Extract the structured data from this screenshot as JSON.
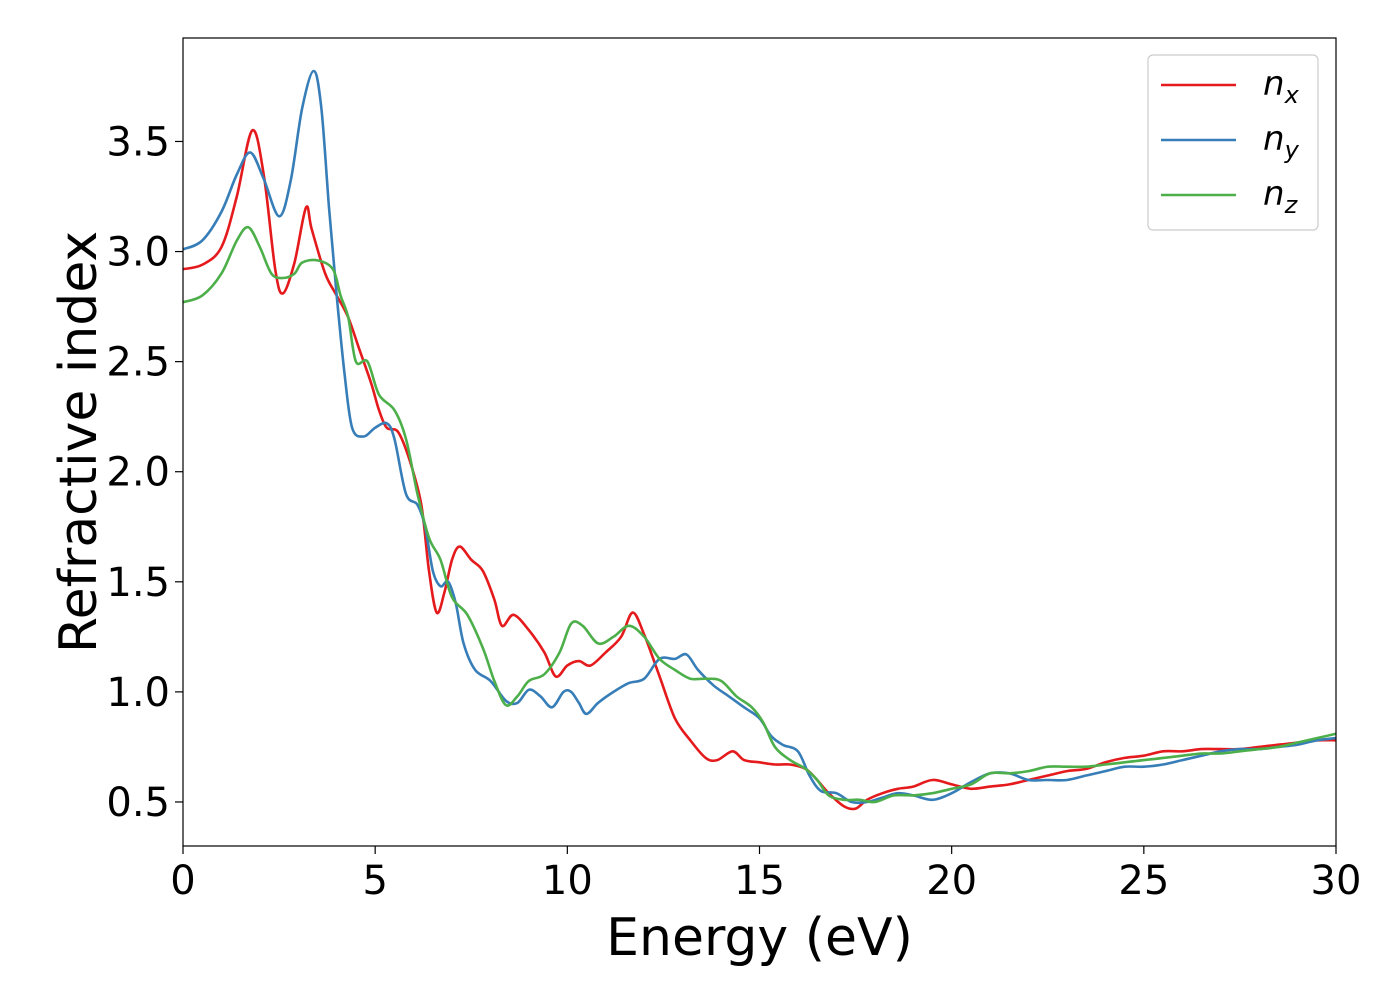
{
  "chart_data": {
    "type": "line",
    "title": "",
    "xlabel": "Energy (eV)",
    "ylabel": "Refractive index",
    "xlim": [
      0,
      30
    ],
    "ylim": [
      0.3,
      3.97
    ],
    "xticks": [
      0,
      5,
      10,
      15,
      20,
      25,
      30
    ],
    "xtick_labels": [
      "0",
      "5",
      "10",
      "15",
      "20",
      "25",
      "30"
    ],
    "yticks": [
      0.5,
      1.0,
      1.5,
      2.0,
      2.5,
      3.0,
      3.5
    ],
    "ytick_labels": [
      "0.5",
      "1.0",
      "1.5",
      "2.0",
      "2.5",
      "3.0",
      "3.5"
    ],
    "grid": false,
    "legend_position": "top-right",
    "series": [
      {
        "name": "n",
        "subscript": "x",
        "color": "#e41a1c",
        "points": [
          [
            0,
            2.92
          ],
          [
            0.5,
            2.94
          ],
          [
            1.0,
            3.02
          ],
          [
            1.4,
            3.25
          ],
          [
            1.8,
            3.55
          ],
          [
            2.1,
            3.35
          ],
          [
            2.4,
            2.92
          ],
          [
            2.6,
            2.81
          ],
          [
            2.9,
            2.95
          ],
          [
            3.2,
            3.2
          ],
          [
            3.35,
            3.1
          ],
          [
            3.7,
            2.9
          ],
          [
            4.0,
            2.8
          ],
          [
            4.3,
            2.7
          ],
          [
            4.6,
            2.55
          ],
          [
            4.9,
            2.4
          ],
          [
            5.1,
            2.28
          ],
          [
            5.3,
            2.2
          ],
          [
            5.6,
            2.18
          ],
          [
            5.9,
            2.05
          ],
          [
            6.2,
            1.85
          ],
          [
            6.4,
            1.55
          ],
          [
            6.6,
            1.36
          ],
          [
            6.8,
            1.45
          ],
          [
            7.0,
            1.6
          ],
          [
            7.2,
            1.66
          ],
          [
            7.5,
            1.6
          ],
          [
            7.8,
            1.55
          ],
          [
            8.1,
            1.42
          ],
          [
            8.3,
            1.3
          ],
          [
            8.6,
            1.35
          ],
          [
            9.0,
            1.28
          ],
          [
            9.4,
            1.18
          ],
          [
            9.7,
            1.07
          ],
          [
            10.0,
            1.12
          ],
          [
            10.3,
            1.14
          ],
          [
            10.6,
            1.12
          ],
          [
            11.0,
            1.18
          ],
          [
            11.4,
            1.25
          ],
          [
            11.7,
            1.36
          ],
          [
            12.0,
            1.26
          ],
          [
            12.4,
            1.07
          ],
          [
            12.8,
            0.88
          ],
          [
            13.2,
            0.78
          ],
          [
            13.6,
            0.7
          ],
          [
            13.9,
            0.69
          ],
          [
            14.3,
            0.73
          ],
          [
            14.6,
            0.69
          ],
          [
            15.0,
            0.68
          ],
          [
            15.4,
            0.67
          ],
          [
            15.8,
            0.67
          ],
          [
            16.2,
            0.65
          ],
          [
            16.5,
            0.6
          ],
          [
            16.8,
            0.54
          ],
          [
            17.2,
            0.48
          ],
          [
            17.5,
            0.47
          ],
          [
            17.8,
            0.51
          ],
          [
            18.2,
            0.54
          ],
          [
            18.6,
            0.56
          ],
          [
            19.0,
            0.57
          ],
          [
            19.5,
            0.6
          ],
          [
            20.0,
            0.58
          ],
          [
            20.5,
            0.56
          ],
          [
            21.0,
            0.57
          ],
          [
            21.5,
            0.58
          ],
          [
            22.0,
            0.6
          ],
          [
            22.5,
            0.62
          ],
          [
            23.0,
            0.64
          ],
          [
            23.5,
            0.65
          ],
          [
            24.0,
            0.68
          ],
          [
            24.5,
            0.7
          ],
          [
            25.0,
            0.71
          ],
          [
            25.5,
            0.73
          ],
          [
            26.0,
            0.73
          ],
          [
            26.5,
            0.74
          ],
          [
            27.0,
            0.74
          ],
          [
            27.5,
            0.74
          ],
          [
            28.0,
            0.75
          ],
          [
            28.5,
            0.76
          ],
          [
            29.0,
            0.77
          ],
          [
            29.5,
            0.78
          ],
          [
            30.0,
            0.78
          ]
        ]
      },
      {
        "name": "n",
        "subscript": "y",
        "color": "#377eb8",
        "points": [
          [
            0,
            3.01
          ],
          [
            0.5,
            3.05
          ],
          [
            1.0,
            3.18
          ],
          [
            1.4,
            3.35
          ],
          [
            1.75,
            3.45
          ],
          [
            2.1,
            3.33
          ],
          [
            2.5,
            3.16
          ],
          [
            2.8,
            3.32
          ],
          [
            3.1,
            3.65
          ],
          [
            3.4,
            3.82
          ],
          [
            3.6,
            3.65
          ],
          [
            3.8,
            3.2
          ],
          [
            4.0,
            2.8
          ],
          [
            4.2,
            2.45
          ],
          [
            4.4,
            2.2
          ],
          [
            4.7,
            2.16
          ],
          [
            5.0,
            2.2
          ],
          [
            5.3,
            2.22
          ],
          [
            5.5,
            2.15
          ],
          [
            5.8,
            1.9
          ],
          [
            6.1,
            1.85
          ],
          [
            6.3,
            1.75
          ],
          [
            6.5,
            1.55
          ],
          [
            6.7,
            1.48
          ],
          [
            6.9,
            1.5
          ],
          [
            7.1,
            1.4
          ],
          [
            7.3,
            1.22
          ],
          [
            7.6,
            1.1
          ],
          [
            8.0,
            1.05
          ],
          [
            8.4,
            0.96
          ],
          [
            8.7,
            0.95
          ],
          [
            9.0,
            1.01
          ],
          [
            9.3,
            0.98
          ],
          [
            9.6,
            0.93
          ],
          [
            9.9,
            1.0
          ],
          [
            10.1,
            1.0
          ],
          [
            10.3,
            0.95
          ],
          [
            10.5,
            0.9
          ],
          [
            10.8,
            0.95
          ],
          [
            11.2,
            1.0
          ],
          [
            11.6,
            1.04
          ],
          [
            12.0,
            1.06
          ],
          [
            12.4,
            1.15
          ],
          [
            12.8,
            1.15
          ],
          [
            13.1,
            1.17
          ],
          [
            13.4,
            1.1
          ],
          [
            13.8,
            1.03
          ],
          [
            14.2,
            0.98
          ],
          [
            14.6,
            0.93
          ],
          [
            15.0,
            0.88
          ],
          [
            15.3,
            0.8
          ],
          [
            15.6,
            0.76
          ],
          [
            16.0,
            0.73
          ],
          [
            16.3,
            0.62
          ],
          [
            16.6,
            0.55
          ],
          [
            17.0,
            0.54
          ],
          [
            17.4,
            0.5
          ],
          [
            17.8,
            0.5
          ],
          [
            18.2,
            0.52
          ],
          [
            18.6,
            0.54
          ],
          [
            19.0,
            0.53
          ],
          [
            19.5,
            0.51
          ],
          [
            20.0,
            0.54
          ],
          [
            20.5,
            0.59
          ],
          [
            21.0,
            0.63
          ],
          [
            21.5,
            0.63
          ],
          [
            22.0,
            0.6
          ],
          [
            22.5,
            0.6
          ],
          [
            23.0,
            0.6
          ],
          [
            23.5,
            0.62
          ],
          [
            24.0,
            0.64
          ],
          [
            24.5,
            0.66
          ],
          [
            25.0,
            0.66
          ],
          [
            25.5,
            0.67
          ],
          [
            26.0,
            0.69
          ],
          [
            26.5,
            0.71
          ],
          [
            27.0,
            0.73
          ],
          [
            27.5,
            0.74
          ],
          [
            28.0,
            0.74
          ],
          [
            28.5,
            0.75
          ],
          [
            29.0,
            0.76
          ],
          [
            29.5,
            0.78
          ],
          [
            30.0,
            0.79
          ]
        ]
      },
      {
        "name": "n",
        "subscript": "z",
        "color": "#4daf4a",
        "points": [
          [
            0,
            2.77
          ],
          [
            0.5,
            2.8
          ],
          [
            1.0,
            2.9
          ],
          [
            1.4,
            3.05
          ],
          [
            1.7,
            3.11
          ],
          [
            2.0,
            3.02
          ],
          [
            2.3,
            2.9
          ],
          [
            2.6,
            2.88
          ],
          [
            2.9,
            2.9
          ],
          [
            3.1,
            2.95
          ],
          [
            3.5,
            2.96
          ],
          [
            3.9,
            2.92
          ],
          [
            4.1,
            2.8
          ],
          [
            4.3,
            2.7
          ],
          [
            4.5,
            2.5
          ],
          [
            4.8,
            2.5
          ],
          [
            5.1,
            2.35
          ],
          [
            5.5,
            2.28
          ],
          [
            5.8,
            2.15
          ],
          [
            6.1,
            1.9
          ],
          [
            6.4,
            1.7
          ],
          [
            6.7,
            1.6
          ],
          [
            7.0,
            1.43
          ],
          [
            7.4,
            1.35
          ],
          [
            7.8,
            1.2
          ],
          [
            8.1,
            1.05
          ],
          [
            8.4,
            0.94
          ],
          [
            8.7,
            0.98
          ],
          [
            9.0,
            1.05
          ],
          [
            9.4,
            1.08
          ],
          [
            9.8,
            1.18
          ],
          [
            10.1,
            1.31
          ],
          [
            10.4,
            1.3
          ],
          [
            10.8,
            1.22
          ],
          [
            11.2,
            1.25
          ],
          [
            11.6,
            1.3
          ],
          [
            12.0,
            1.25
          ],
          [
            12.4,
            1.15
          ],
          [
            12.8,
            1.1
          ],
          [
            13.2,
            1.06
          ],
          [
            13.6,
            1.06
          ],
          [
            14.0,
            1.05
          ],
          [
            14.4,
            0.98
          ],
          [
            14.8,
            0.93
          ],
          [
            15.1,
            0.86
          ],
          [
            15.4,
            0.75
          ],
          [
            15.8,
            0.69
          ],
          [
            16.2,
            0.65
          ],
          [
            16.5,
            0.6
          ],
          [
            16.8,
            0.53
          ],
          [
            17.2,
            0.51
          ],
          [
            17.6,
            0.51
          ],
          [
            18.0,
            0.5
          ],
          [
            18.5,
            0.53
          ],
          [
            19.0,
            0.53
          ],
          [
            19.5,
            0.54
          ],
          [
            20.0,
            0.56
          ],
          [
            20.5,
            0.58
          ],
          [
            21.0,
            0.63
          ],
          [
            21.5,
            0.63
          ],
          [
            22.0,
            0.64
          ],
          [
            22.5,
            0.66
          ],
          [
            23.0,
            0.66
          ],
          [
            23.5,
            0.66
          ],
          [
            24.0,
            0.67
          ],
          [
            24.5,
            0.68
          ],
          [
            25.0,
            0.69
          ],
          [
            25.5,
            0.7
          ],
          [
            26.0,
            0.71
          ],
          [
            26.5,
            0.72
          ],
          [
            27.0,
            0.72
          ],
          [
            27.5,
            0.73
          ],
          [
            28.0,
            0.74
          ],
          [
            28.5,
            0.75
          ],
          [
            29.0,
            0.77
          ],
          [
            29.5,
            0.79
          ],
          [
            30.0,
            0.81
          ]
        ]
      }
    ]
  }
}
